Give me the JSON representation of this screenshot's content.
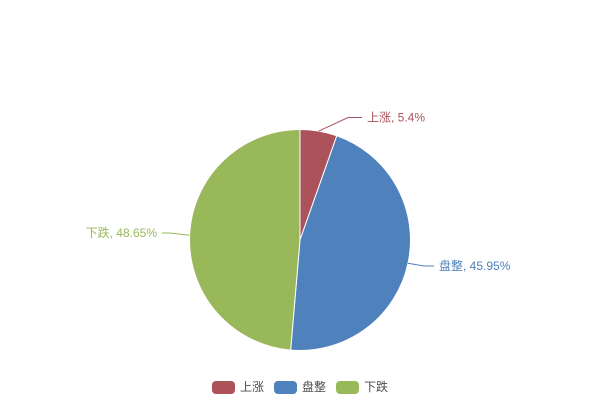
{
  "chart_data": {
    "type": "pie",
    "categories": [
      "上涨",
      "盘整",
      "下跌"
    ],
    "values": [
      5.4,
      45.95,
      48.65
    ],
    "labels": [
      "上涨, 5.4%",
      "盘整, 45.95%",
      "下跌, 48.65%"
    ],
    "colors": [
      "#ab525a",
      "#4f81bd",
      "#98b85a"
    ],
    "start_angle": "top-clockwise",
    "slice_border_color": "#ffffff",
    "legend": {
      "position": "bottom-center",
      "items": [
        "上涨",
        "盘整",
        "下跌"
      ],
      "text_color": "#4d4d4d"
    },
    "background": "#ffffff"
  }
}
